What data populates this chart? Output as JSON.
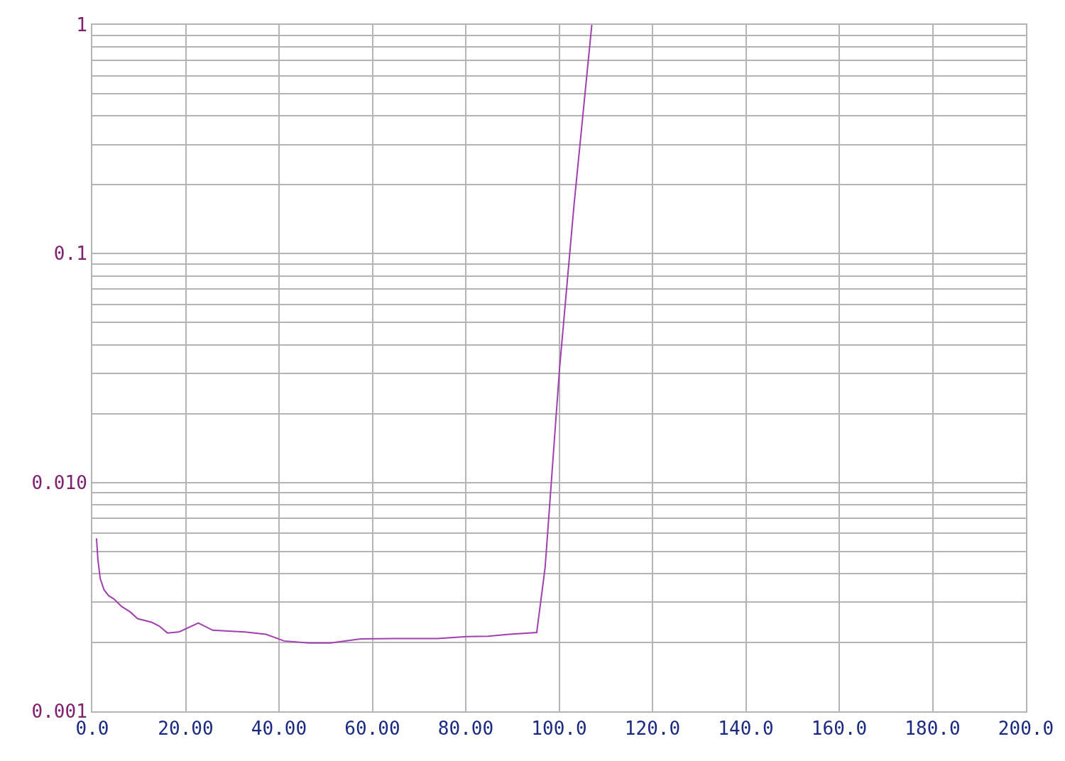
{
  "chart_data": {
    "type": "line",
    "log": "y",
    "grid": true,
    "legend": false,
    "marker": "none",
    "line_style": "solid",
    "xlim": [
      0,
      200
    ],
    "xticks": [
      {
        "value": 0,
        "label": "0.0"
      },
      {
        "value": 20,
        "label": "20.00"
      },
      {
        "value": 40,
        "label": "40.00"
      },
      {
        "value": 60,
        "label": "60.00"
      },
      {
        "value": 80,
        "label": "80.00"
      },
      {
        "value": 100,
        "label": "100.0"
      },
      {
        "value": 120,
        "label": "120.0"
      },
      {
        "value": 140,
        "label": "140.0"
      },
      {
        "value": 160,
        "label": "160.0"
      },
      {
        "value": 180,
        "label": "180.0"
      },
      {
        "value": 200,
        "label": "200.0"
      }
    ],
    "ylim": [
      0.001,
      1
    ],
    "yticks": [
      {
        "value": 0.001,
        "label": "0.001"
      },
      {
        "value": 0.002,
        "label": null
      },
      {
        "value": 0.003,
        "label": null
      },
      {
        "value": 0.004,
        "label": null
      },
      {
        "value": 0.005,
        "label": null
      },
      {
        "value": 0.006,
        "label": null
      },
      {
        "value": 0.007,
        "label": null
      },
      {
        "value": 0.008,
        "label": null
      },
      {
        "value": 0.009,
        "label": null
      },
      {
        "value": 0.01,
        "label": "0.010"
      },
      {
        "value": 0.02,
        "label": null
      },
      {
        "value": 0.03,
        "label": null
      },
      {
        "value": 0.04,
        "label": null
      },
      {
        "value": 0.05,
        "label": null
      },
      {
        "value": 0.06,
        "label": null
      },
      {
        "value": 0.07,
        "label": null
      },
      {
        "value": 0.08,
        "label": null
      },
      {
        "value": 0.09,
        "label": null
      },
      {
        "value": 0.1,
        "label": "0.1"
      },
      {
        "value": 0.2,
        "label": null
      },
      {
        "value": 0.3,
        "label": null
      },
      {
        "value": 0.4,
        "label": null
      },
      {
        "value": 0.5,
        "label": null
      },
      {
        "value": 0.6,
        "label": null
      },
      {
        "value": 0.7,
        "label": null
      },
      {
        "value": 0.8,
        "label": null
      },
      {
        "value": 0.9,
        "label": null
      },
      {
        "value": 1,
        "label": "1"
      }
    ],
    "x": [
      0.9,
      1.2,
      1.7,
      2.5,
      3.5,
      4.6,
      6.3,
      8.1,
      9.7,
      12.7,
      14.3,
      16.1,
      18.5,
      22.7,
      25.8,
      32.7,
      37.2,
      41.1,
      46.4,
      51.0,
      57.2,
      64.8,
      74.0,
      80.2,
      84.8,
      89.3,
      95.2,
      97.0,
      100.1,
      103.2,
      107.0
    ],
    "series": [
      {
        "color": "#a040b0",
        "values": [
          0.0057,
          0.0046,
          0.0038,
          0.0034,
          0.0032,
          0.0031,
          0.00287,
          0.00272,
          0.00254,
          0.00245,
          0.00236,
          0.0022,
          0.00222,
          0.00243,
          0.00226,
          0.00222,
          0.00217,
          0.00203,
          0.00199,
          0.00199,
          0.00207,
          0.00208,
          0.00208,
          0.00212,
          0.00213,
          0.00217,
          0.00221,
          0.00425,
          0.0316,
          0.164,
          1
        ]
      }
    ]
  }
}
